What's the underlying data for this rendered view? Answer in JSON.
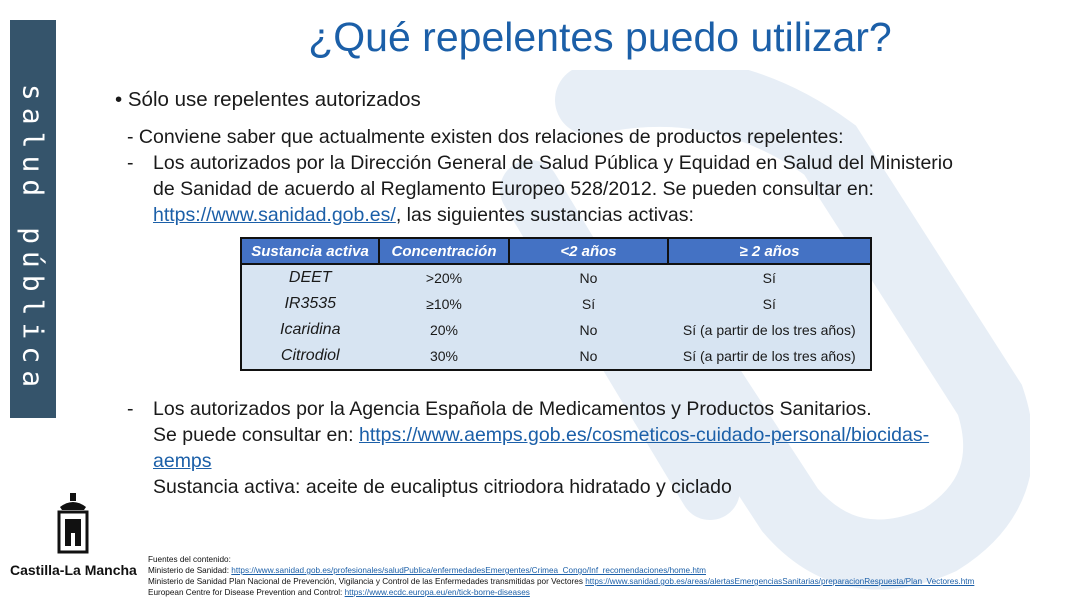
{
  "sidebar": {
    "text": "salud pública"
  },
  "title": "¿Qué repelentes puedo utilizar?",
  "bullet_main": "• Sólo use repelentes autorizados",
  "intro": "- Conviene saber que actualmente existen dos relaciones de productos repelentes:",
  "dsp": {
    "marker": "-",
    "line1": "Los autorizados por la Dirección General de Salud Pública y  Equidad en Salud del Ministerio",
    "line2": "de Sanidad de acuerdo al Reglamento Europeo 528/2012. Se pueden consultar en:",
    "link": "https://www.sanidad.gob.es/",
    "after_link": ", las siguientes sustancias activas:"
  },
  "table": {
    "headers": [
      "Sustancia activa",
      "Concentración",
      "<2 años",
      "≥ 2 años"
    ],
    "rows": [
      [
        "DEET",
        ">20%",
        "No",
        "Sí"
      ],
      [
        "IR3535",
        "≥10%",
        "Sí",
        "Sí"
      ],
      [
        "Icaridina",
        "20%",
        "No",
        "Sí (a partir de los tres años)"
      ],
      [
        "Citrodiol",
        "30%",
        "No",
        "Sí (a partir de los tres años)"
      ]
    ]
  },
  "aemps": {
    "marker": "-",
    "line1": "Los autorizados por la Agencia Española de Medicamentos y Productos Sanitarios.",
    "consult_prefix": "Se puede consultar en: ",
    "link_part1": "https://www.aemps.gob.es/cosmeticos-cuidado-personal/biocidas-",
    "link_part2": "aemps",
    "substance": "Sustancia activa:  aceite de eucaliptus citriodora hidratado y ciclado"
  },
  "logo": {
    "name": "Castilla-La Mancha"
  },
  "sources": {
    "heading": "Fuentes  del contenido:",
    "s1_prefix": "Ministerio de Sanidad: ",
    "s1_link": "https://www.sanidad.gob.es/profesionales/saludPublica/enfermedadesEmergentes/Crimea_Congo/Inf_recomendaciones/home.htm",
    "s2_prefix": "Ministerio de Sanidad Plan Nacional de Prevención, Vigilancia y Control de las Enfermedades transmitidas por Vectores ",
    "s2_link": "https://www.sanidad.gob.es/areas/alertasEmergenciasSanitarias/preparacionRespuesta/Plan_Vectores.htm",
    "s3_prefix": "European Centre for Disease Prevention and Control: ",
    "s3_link": "https://www.ecdc.europa.eu/en/tick-borne-diseases"
  },
  "colors": {
    "sidebar": "#35546b",
    "title": "#1b5fa8",
    "table_header": "#4472c4",
    "table_body": "#d7e4f2"
  }
}
